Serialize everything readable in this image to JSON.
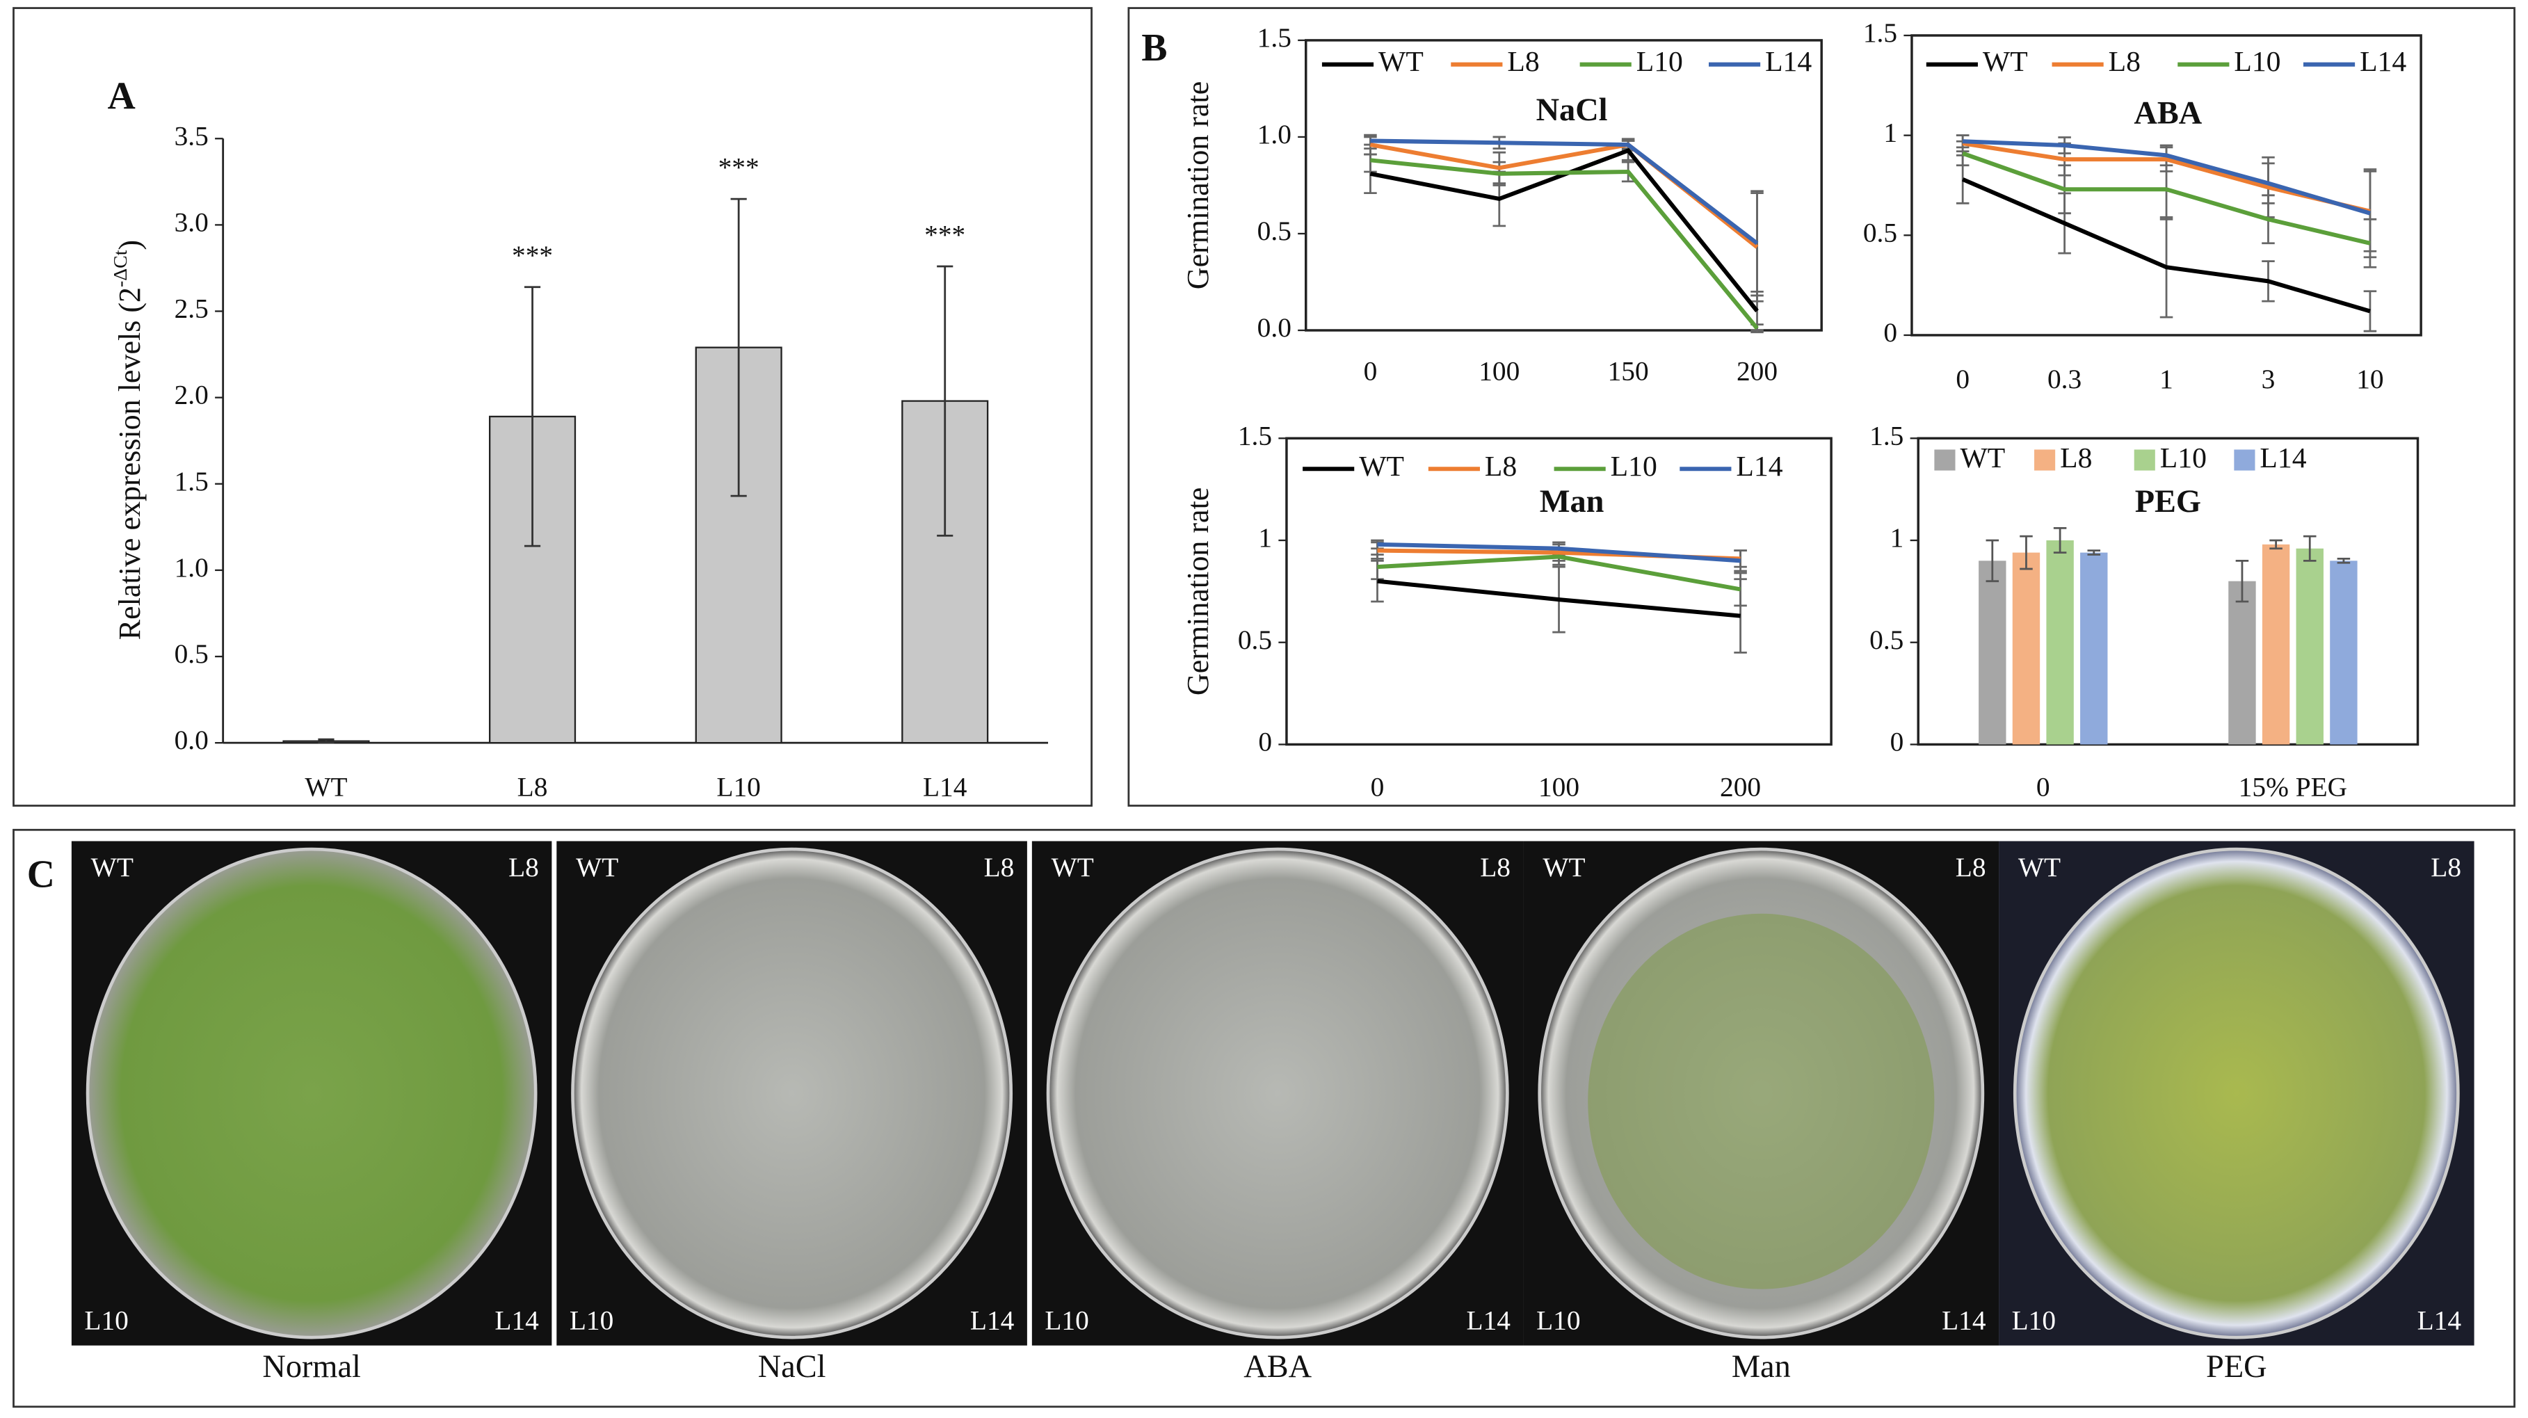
{
  "chart_data": [
    {
      "type": "bar",
      "panel": "A",
      "y_label": [
        "Relative expression levels (2",
        "-ΔCt",
        ")"
      ],
      "categories": [
        "WT",
        "L8",
        "L10",
        "L14"
      ],
      "values": [
        0.01,
        1.89,
        2.29,
        1.98
      ],
      "errors": [
        0.01,
        0.75,
        0.86,
        0.78
      ],
      "annotations": [
        null,
        "***",
        "***",
        "***"
      ],
      "color": "#c8c8c8",
      "box": false,
      "ylim": [
        0,
        3.5
      ],
      "yticks": [
        {
          "value": 0,
          "label": "0.0"
        },
        0.5,
        {
          "value": 1,
          "label": "1.0"
        },
        1.5,
        {
          "value": 2,
          "label": "2.0"
        },
        2.5,
        {
          "value": 3,
          "label": "3.0"
        },
        3.5
      ]
    },
    {
      "type": "line",
      "panel": "B",
      "title": "NaCl",
      "y_label": "Germination rate",
      "categories": [
        "0",
        "100",
        "150",
        "200"
      ],
      "box": true,
      "legend": "top",
      "series": [
        {
          "name": "WT",
          "color": "#000000",
          "values": [
            0.81,
            0.68,
            0.93,
            0.1
          ],
          "errors": [
            0.1,
            0.14,
            0.05,
            0.1
          ]
        },
        {
          "name": "L8",
          "color": "#ed7d31",
          "values": [
            0.96,
            0.84,
            0.96,
            0.43
          ],
          "errors": [
            0.05,
            0.08,
            0.03,
            0.28
          ]
        },
        {
          "name": "L10",
          "color": "#5b9f3a",
          "values": [
            0.88,
            0.81,
            0.82,
            0.01
          ],
          "errors": [
            0.06,
            0.06,
            0.05,
            0.02
          ]
        },
        {
          "name": "L14",
          "color": "#3a65b0",
          "values": [
            0.98,
            0.97,
            0.96,
            0.45
          ],
          "errors": [
            0.02,
            0.03,
            0.02,
            0.27
          ]
        }
      ],
      "ylim": [
        0,
        1.5
      ],
      "yticks": [
        {
          "value": 0,
          "label": "0.0"
        },
        0.5,
        {
          "value": 1,
          "label": "1.0"
        },
        1.5
      ]
    },
    {
      "type": "line",
      "title": "ABA",
      "categories": [
        "0",
        "0.3",
        "1",
        "3",
        "10"
      ],
      "box": true,
      "legend": "top",
      "series": [
        {
          "name": "WT",
          "color": "#000000",
          "values": [
            0.78,
            0.56,
            0.34,
            0.27,
            0.12
          ],
          "errors": [
            0.12,
            0.15,
            0.25,
            0.1,
            0.1
          ]
        },
        {
          "name": "L8",
          "color": "#ed7d31",
          "values": [
            0.96,
            0.88,
            0.88,
            0.74,
            0.62
          ],
          "errors": [
            0.04,
            0.08,
            0.06,
            0.15,
            0.2
          ]
        },
        {
          "name": "L10",
          "color": "#5b9f3a",
          "values": [
            0.91,
            0.73,
            0.73,
            0.58,
            0.46
          ],
          "errors": [
            0.06,
            0.12,
            0.15,
            0.12,
            0.12
          ]
        },
        {
          "name": "L14",
          "color": "#3a65b0",
          "values": [
            0.97,
            0.95,
            0.9,
            0.76,
            0.61
          ],
          "errors": [
            0.03,
            0.04,
            0.05,
            0.1,
            0.22
          ]
        }
      ],
      "ylim": [
        0,
        1.5
      ],
      "yticks": [
        0,
        0.5,
        1,
        1.5
      ]
    },
    {
      "type": "line",
      "title": "Man",
      "y_label": "Germination rate",
      "categories": [
        "0",
        "100",
        "200"
      ],
      "box": true,
      "legend": "top",
      "series": [
        {
          "name": "WT",
          "color": "#000000",
          "values": [
            0.8,
            0.71,
            0.63
          ],
          "errors": [
            0.1,
            0.16,
            0.18
          ]
        },
        {
          "name": "L8",
          "color": "#ed7d31",
          "values": [
            0.95,
            0.94,
            0.91
          ],
          "errors": [
            0.04,
            0.04,
            0.04
          ]
        },
        {
          "name": "L10",
          "color": "#5b9f3a",
          "values": [
            0.87,
            0.92,
            0.76
          ],
          "errors": [
            0.06,
            0.04,
            0.08
          ]
        },
        {
          "name": "L14",
          "color": "#3a65b0",
          "values": [
            0.98,
            0.96,
            0.9
          ],
          "errors": [
            0.02,
            0.03,
            0.05
          ]
        }
      ],
      "ylim": [
        0,
        1.5
      ],
      "yticks": [
        0,
        0.5,
        1,
        1.5
      ]
    },
    {
      "type": "bar",
      "title": "PEG",
      "categories": [
        "0",
        "15% PEG"
      ],
      "box": true,
      "legend": "top",
      "series": [
        {
          "name": "WT",
          "color": "#a6a6a6",
          "values": [
            0.9,
            0.8
          ],
          "errors": [
            0.1,
            0.1
          ]
        },
        {
          "name": "L8",
          "color": "#f4b183",
          "values": [
            0.94,
            0.98
          ],
          "errors": [
            0.08,
            0.02
          ]
        },
        {
          "name": "L10",
          "color": "#a9d18e",
          "values": [
            1.0,
            0.96
          ],
          "errors": [
            0.06,
            0.06
          ]
        },
        {
          "name": "L14",
          "color": "#8faadc",
          "values": [
            0.94,
            0.9
          ],
          "errors": [
            0.01,
            0.01
          ]
        }
      ],
      "ylim": [
        0,
        1.5
      ],
      "yticks": [
        0,
        0.5,
        1,
        1.5
      ]
    }
  ],
  "panel_c": {
    "label": "C",
    "plates": [
      {
        "name": "Normal",
        "corners": [
          "WT",
          "L8",
          "L10",
          "L14"
        ]
      },
      {
        "name": "NaCl",
        "corners": [
          "WT",
          "L8",
          "L10",
          "L14"
        ]
      },
      {
        "name": "ABA",
        "corners": [
          "WT",
          "L8",
          "L10",
          "L14"
        ]
      },
      {
        "name": "Man",
        "corners": [
          "WT",
          "L8",
          "L10",
          "L14"
        ]
      },
      {
        "name": "PEG",
        "corners": [
          "WT",
          "L8",
          "L10",
          "L14"
        ]
      }
    ]
  }
}
